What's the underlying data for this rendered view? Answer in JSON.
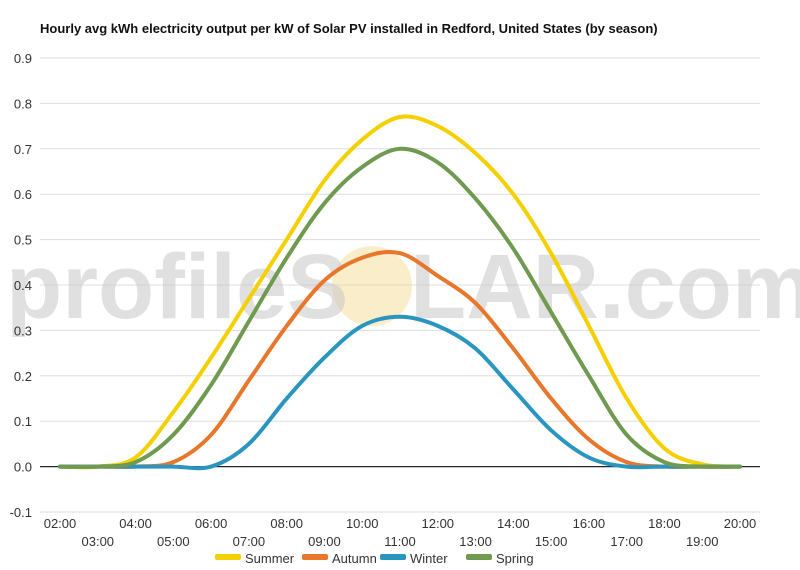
{
  "watermark": {
    "before": "profileS",
    "after": "LAR.com"
  },
  "chart_data": {
    "type": "line",
    "title": "Hourly avg kWh electricity output per kW of Solar PV installed in Redford, United States (by season)",
    "xlabel": "",
    "ylabel": "",
    "ylim": [
      -0.1,
      0.9
    ],
    "yticks": [
      "-0.1",
      "0.0",
      "0.1",
      "0.2",
      "0.3",
      "0.4",
      "0.5",
      "0.6",
      "0.7",
      "0.8",
      "0.9"
    ],
    "x": [
      "02:00",
      "03:00",
      "04:00",
      "05:00",
      "06:00",
      "07:00",
      "08:00",
      "09:00",
      "10:00",
      "11:00",
      "12:00",
      "13:00",
      "14:00",
      "15:00",
      "16:00",
      "17:00",
      "18:00",
      "19:00",
      "20:00"
    ],
    "grid": true,
    "legend_position": "bottom",
    "series": [
      {
        "name": "Summer",
        "color": "#f5d000",
        "values": [
          0,
          0,
          0.02,
          0.12,
          0.24,
          0.37,
          0.5,
          0.63,
          0.72,
          0.77,
          0.75,
          0.69,
          0.6,
          0.47,
          0.31,
          0.15,
          0.04,
          0.005,
          0
        ]
      },
      {
        "name": "Autumn",
        "color": "#e8762b",
        "values": [
          0,
          0,
          0,
          0.01,
          0.07,
          0.19,
          0.31,
          0.41,
          0.46,
          0.47,
          0.42,
          0.36,
          0.26,
          0.15,
          0.06,
          0.01,
          0,
          0,
          0
        ]
      },
      {
        "name": "Winter",
        "color": "#2a96c0",
        "values": [
          0,
          0,
          0,
          0,
          0,
          0.05,
          0.15,
          0.24,
          0.31,
          0.33,
          0.31,
          0.26,
          0.17,
          0.08,
          0.02,
          0,
          0,
          0,
          0
        ]
      },
      {
        "name": "Spring",
        "color": "#6f9a4f",
        "values": [
          0,
          0,
          0.01,
          0.07,
          0.18,
          0.32,
          0.46,
          0.58,
          0.66,
          0.7,
          0.67,
          0.59,
          0.48,
          0.34,
          0.2,
          0.07,
          0.01,
          0,
          0
        ]
      }
    ]
  }
}
